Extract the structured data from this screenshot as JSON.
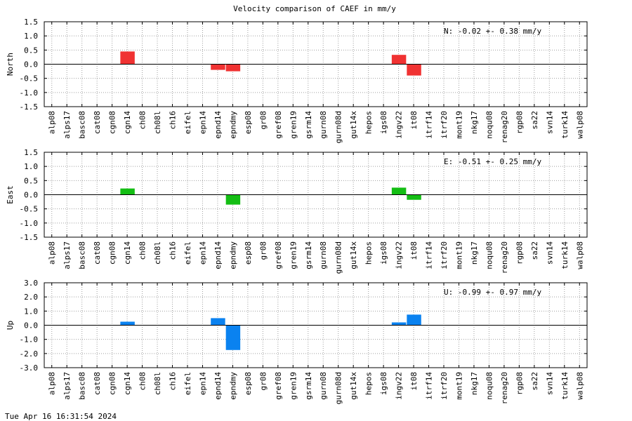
{
  "title": "Velocity comparison of CAEF in mm/y",
  "footer": "Tue Apr 16 16:31:54 2024",
  "chart_data": {
    "type": "bar",
    "title": "Velocity comparison of CAEF in mm/y",
    "categories": [
      "alp08",
      "alps17",
      "basc08",
      "cat08",
      "cgn08",
      "cgn14",
      "ch08",
      "ch08l",
      "ch16",
      "eifel",
      "epn14",
      "epnd14",
      "epndmy",
      "esp08",
      "gr08",
      "gref08",
      "gren19",
      "gsrm14",
      "gurn08",
      "gurn08d",
      "gut14x",
      "hepos",
      "igs08",
      "ingv22",
      "it08",
      "itrf14",
      "itrf20",
      "mont19",
      "nkg17",
      "noqu08",
      "renag20",
      "rgp08",
      "sa22",
      "svn14",
      "turk14",
      "walp08"
    ],
    "grid": true,
    "panels": [
      {
        "ylabel": "North",
        "ylim": [
          -1.5,
          1.5
        ],
        "yticks": [
          "1.5",
          "1.0",
          "0.5",
          "0.0",
          "-0.5",
          "-1.0",
          "-1.5"
        ],
        "ytick_values": [
          1.5,
          1.0,
          0.5,
          0.0,
          -0.5,
          -1.0,
          -1.5
        ],
        "color": "#f03232",
        "annotation": "N:  -0.02 +-  0.38 mm/y",
        "values": [
          null,
          null,
          null,
          null,
          null,
          0.45,
          null,
          null,
          null,
          null,
          null,
          -0.2,
          -0.25,
          null,
          null,
          null,
          null,
          null,
          null,
          null,
          null,
          null,
          null,
          0.33,
          -0.4,
          null,
          null,
          null,
          null,
          null,
          null,
          null,
          null,
          null,
          null,
          null
        ]
      },
      {
        "ylabel": "East",
        "ylim": [
          -1.5,
          1.5
        ],
        "yticks": [
          "1.5",
          "1.0",
          "0.5",
          "0.0",
          "-0.5",
          "-1.0",
          "-1.5"
        ],
        "ytick_values": [
          1.5,
          1.0,
          0.5,
          0.0,
          -0.5,
          -1.0,
          -1.5
        ],
        "color": "#14be14",
        "annotation": "E:  -0.51 +-  0.25 mm/y",
        "values": [
          null,
          null,
          null,
          null,
          null,
          0.22,
          null,
          null,
          null,
          null,
          null,
          null,
          -0.35,
          null,
          null,
          null,
          null,
          null,
          null,
          null,
          null,
          null,
          null,
          0.25,
          -0.18,
          null,
          null,
          null,
          null,
          null,
          null,
          null,
          null,
          null,
          null,
          null
        ]
      },
      {
        "ylabel": "Up",
        "ylim": [
          -3.0,
          3.0
        ],
        "yticks": [
          "3.0",
          "2.0",
          "1.0",
          "0.0",
          "-1.0",
          "-2.0",
          "-3.0"
        ],
        "ytick_values": [
          3.0,
          2.0,
          1.0,
          0.0,
          -1.0,
          -2.0,
          -3.0
        ],
        "color": "#0a82f0",
        "annotation": "U:  -0.99 +-  0.97 mm/y",
        "values": [
          null,
          null,
          null,
          null,
          null,
          0.25,
          null,
          null,
          null,
          null,
          null,
          0.5,
          -1.75,
          null,
          null,
          null,
          null,
          null,
          null,
          null,
          null,
          null,
          null,
          0.2,
          0.75,
          null,
          null,
          null,
          null,
          null,
          null,
          null,
          null,
          null,
          null,
          null
        ]
      }
    ]
  }
}
